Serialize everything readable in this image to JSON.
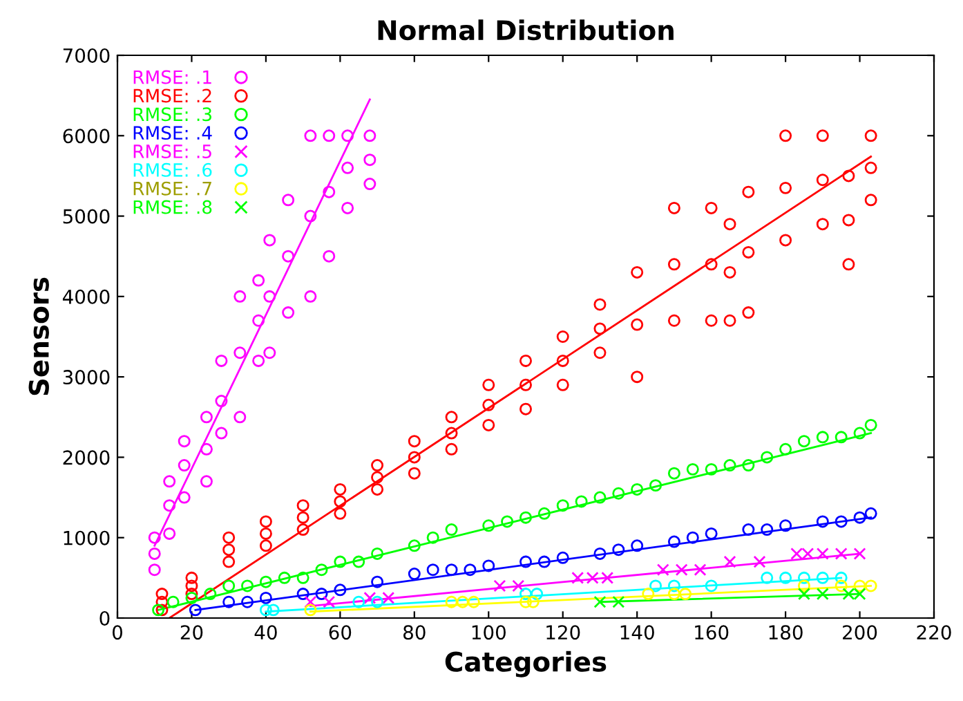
{
  "chart_data": {
    "type": "scatter",
    "title": "Normal Distribution",
    "xlabel": "Categories",
    "ylabel": "Sensors",
    "xlim": [
      0,
      220
    ],
    "xticks": [
      0,
      20,
      40,
      60,
      80,
      100,
      120,
      140,
      160,
      180,
      200,
      220
    ],
    "ylim": [
      0,
      7000
    ],
    "yticks": [
      0,
      1000,
      2000,
      3000,
      4000,
      5000,
      6000,
      7000
    ],
    "grid": false,
    "legend": "top left",
    "series": [
      {
        "name": "RMSE: .1",
        "color": "#ff00ff",
        "marker": "circle",
        "x": [
          10,
          10,
          10,
          14,
          14,
          14,
          18,
          18,
          18,
          24,
          24,
          24,
          28,
          28,
          28,
          33,
          33,
          33,
          38,
          38,
          38,
          41,
          41,
          41,
          46,
          46,
          46,
          52,
          52,
          52,
          57,
          57,
          57,
          62,
          62,
          62,
          68,
          68,
          68
        ],
        "values": [
          600,
          800,
          1000,
          1050,
          1400,
          1700,
          1500,
          1900,
          2200,
          1700,
          2100,
          2500,
          2300,
          2700,
          3200,
          2500,
          3300,
          4000,
          3200,
          3700,
          4200,
          3300,
          4000,
          4700,
          3800,
          4500,
          5200,
          4000,
          5000,
          6000,
          4500,
          5300,
          6000,
          5100,
          5600,
          6000,
          5400,
          5700,
          6000
        ]
      },
      {
        "name": "RMSE: .2",
        "color": "#ff0000",
        "marker": "circle",
        "x": [
          12,
          12,
          12,
          20,
          20,
          20,
          30,
          30,
          30,
          40,
          40,
          40,
          50,
          50,
          50,
          60,
          60,
          60,
          70,
          70,
          70,
          80,
          80,
          80,
          90,
          90,
          90,
          100,
          100,
          100,
          110,
          110,
          110,
          120,
          120,
          120,
          130,
          130,
          130,
          140,
          140,
          140,
          150,
          150,
          150,
          160,
          160,
          160,
          165,
          165,
          165,
          170,
          170,
          170,
          180,
          180,
          180,
          190,
          190,
          190,
          197,
          197,
          197,
          203,
          203,
          203
        ],
        "values": [
          100,
          200,
          300,
          300,
          400,
          500,
          700,
          850,
          1000,
          900,
          1050,
          1200,
          1100,
          1250,
          1400,
          1300,
          1450,
          1600,
          1600,
          1750,
          1900,
          1800,
          2000,
          2200,
          2100,
          2300,
          2500,
          2400,
          2650,
          2900,
          2600,
          2900,
          3200,
          2900,
          3200,
          3500,
          3300,
          3600,
          3900,
          3000,
          3650,
          4300,
          3700,
          4400,
          5100,
          3700,
          4400,
          5100,
          3700,
          4300,
          4900,
          3800,
          4550,
          5300,
          4700,
          5350,
          6000,
          4900,
          5450,
          6000,
          4400,
          4950,
          5500,
          5200,
          5600,
          6000
        ]
      },
      {
        "name": "RMSE: .3",
        "color": "#00ff00",
        "marker": "circle",
        "x": [
          11,
          15,
          20,
          25,
          30,
          35,
          40,
          45,
          50,
          55,
          60,
          65,
          70,
          80,
          85,
          90,
          100,
          105,
          110,
          115,
          120,
          125,
          130,
          135,
          140,
          145,
          150,
          155,
          160,
          165,
          170,
          175,
          180,
          185,
          190,
          195,
          200,
          203
        ],
        "values": [
          100,
          200,
          250,
          300,
          400,
          400,
          450,
          500,
          500,
          600,
          700,
          700,
          800,
          900,
          1000,
          1100,
          1150,
          1200,
          1250,
          1300,
          1400,
          1450,
          1500,
          1550,
          1600,
          1650,
          1800,
          1850,
          1850,
          1900,
          1900,
          2000,
          2100,
          2200,
          2250,
          2250,
          2300,
          2400
        ]
      },
      {
        "name": "RMSE: .4",
        "color": "#0000ff",
        "marker": "circle",
        "x": [
          21,
          30,
          35,
          40,
          50,
          55,
          60,
          70,
          80,
          85,
          90,
          95,
          100,
          110,
          115,
          120,
          130,
          135,
          140,
          150,
          155,
          160,
          170,
          175,
          180,
          190,
          195,
          200,
          203
        ],
        "values": [
          100,
          200,
          200,
          250,
          300,
          300,
          350,
          450,
          550,
          600,
          600,
          600,
          650,
          700,
          700,
          750,
          800,
          850,
          900,
          950,
          1000,
          1050,
          1100,
          1100,
          1150,
          1200,
          1200,
          1250,
          1300
        ]
      },
      {
        "name": "RMSE: .5",
        "color": "#ff00ff",
        "marker": "cross",
        "x": [
          52,
          57,
          68,
          73,
          103,
          108,
          124,
          128,
          132,
          147,
          152,
          157,
          165,
          173,
          183,
          186,
          190,
          195,
          200
        ],
        "values": [
          200,
          200,
          250,
          250,
          400,
          400,
          500,
          500,
          500,
          600,
          600,
          600,
          700,
          700,
          800,
          800,
          800,
          800,
          800
        ]
      },
      {
        "name": "RMSE: .6",
        "color": "#00ffff",
        "marker": "circle",
        "x": [
          40,
          42,
          65,
          70,
          110,
          113,
          145,
          150,
          160,
          175,
          180,
          185,
          190,
          195
        ],
        "values": [
          100,
          100,
          200,
          200,
          300,
          300,
          400,
          400,
          400,
          500,
          500,
          500,
          500,
          500
        ]
      },
      {
        "name": "RMSE: .7",
        "color": "#ffff00",
        "marker": "circle",
        "x": [
          52,
          90,
          93,
          96,
          110,
          112,
          143,
          150,
          153,
          185,
          195,
          200,
          203
        ],
        "values": [
          100,
          200,
          200,
          200,
          200,
          200,
          300,
          300,
          300,
          400,
          400,
          400,
          400
        ]
      },
      {
        "name": "RMSE: .8",
        "color": "#00ff00",
        "marker": "cross",
        "x": [
          130,
          135,
          185,
          190,
          197,
          200
        ],
        "values": [
          200,
          200,
          300,
          300,
          300,
          300
        ]
      },
      {
        "type": "line",
        "color": "#ff00ff",
        "x": [
          10,
          68
        ],
        "values": [
          900,
          6450
        ]
      },
      {
        "type": "line",
        "color": "#ff0000",
        "x": [
          14,
          203
        ],
        "values": [
          0,
          5740
        ]
      },
      {
        "type": "line",
        "color": "#00ff00",
        "x": [
          11,
          203
        ],
        "values": [
          100,
          2300
        ]
      },
      {
        "type": "line",
        "color": "#0000ff",
        "x": [
          21,
          203
        ],
        "values": [
          100,
          1250
        ]
      },
      {
        "type": "line",
        "color": "#ff00ff",
        "x": [
          52,
          200
        ],
        "values": [
          150,
          800
        ]
      },
      {
        "type": "line",
        "color": "#00ffff",
        "x": [
          40,
          195
        ],
        "values": [
          80,
          500
        ]
      },
      {
        "type": "line",
        "color": "#ffff00",
        "x": [
          52,
          203
        ],
        "values": [
          80,
          400
        ]
      },
      {
        "type": "line",
        "color": "#00ff00",
        "x": [
          130,
          200
        ],
        "values": [
          200,
          300
        ]
      }
    ]
  }
}
